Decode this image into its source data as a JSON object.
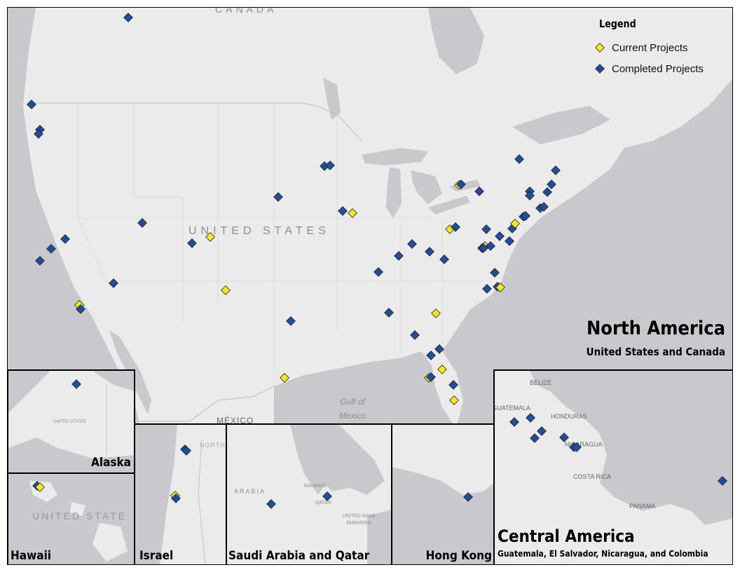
{
  "legend": {
    "title": "Legend",
    "items": [
      {
        "label": "Current Projects",
        "color": "#f4e620"
      },
      {
        "label": "Completed Projects",
        "color": "#1f4e9a"
      }
    ]
  },
  "colors": {
    "land": "#ebebeb",
    "water": "#c9c9cd",
    "border": "#000000",
    "marker_outline": "#222222"
  },
  "main_map": {
    "title": "North America",
    "subtitle": "United States and Canada",
    "labels": {
      "canada": "CANADA",
      "united_states": "UNITED STATES",
      "mexico": "MÉXICO",
      "gulf": "Gulf of Mexico"
    }
  },
  "insets": {
    "alaska": {
      "title": "Alaska",
      "label": "UNITED STATES"
    },
    "hawaii": {
      "title": "Hawaii",
      "label": "UNITED STATE"
    },
    "israel": {
      "title": "Israel",
      "label": "NORTH"
    },
    "saudi": {
      "title": "Saudi Arabia and Qatar",
      "labels": [
        "ARABIA",
        "BAHRAIN",
        "QATAR",
        "UNITED ARAB EMIRATES"
      ]
    },
    "hongkong": {
      "title": "Hong Kong"
    },
    "central_america": {
      "title": "Central America",
      "subtitle": "Guatemala, El Salvador, Nicaragua, and Colombia",
      "labels": [
        "BELIZE",
        "GUATEMALA",
        "HONDURAS",
        "NICARAGUA",
        "COSTA RICA",
        "PANAMÁ"
      ]
    }
  }
}
